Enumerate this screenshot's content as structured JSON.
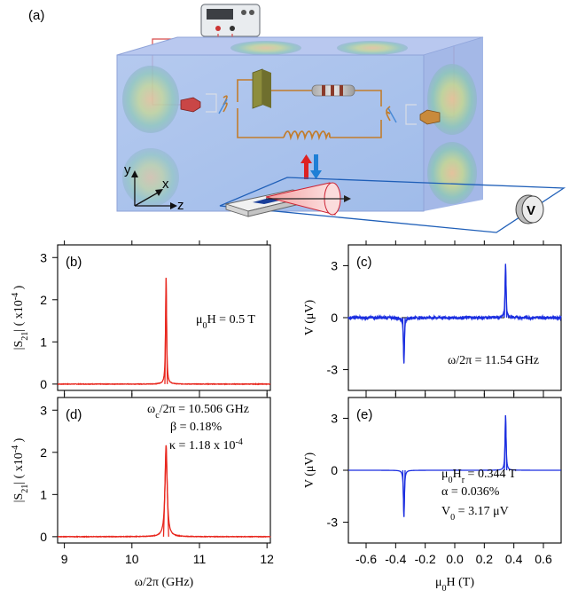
{
  "figure": {
    "panel_a": {
      "label": "(a)",
      "axis_labels": {
        "y": "y",
        "x": "x",
        "z": "z"
      }
    }
  },
  "chart_data": [
    {
      "id": "b",
      "panel_label": "(b)",
      "type": "line",
      "ylabel": "|S21| ( x10-4 )",
      "xlabel": "",
      "xlim": [
        8.9,
        12.05
      ],
      "ylim": [
        -0.15,
        3.3
      ],
      "xticks": [
        9,
        10,
        11,
        12
      ],
      "yticks": [
        0,
        1,
        2,
        3
      ],
      "xtick_labels_shown": false,
      "ytick_labels_shown": true,
      "annotation": "μ0H = 0.5 T",
      "series": [
        {
          "color": "#e8271e",
          "model": "lorentzian",
          "center": 10.506,
          "peak": 2.52,
          "hwhm": 0.009,
          "baseline": 0.0
        }
      ]
    },
    {
      "id": "c",
      "panel_label": "(c)",
      "type": "line",
      "ylabel": "V (μV)",
      "xlabel": "",
      "xlim": [
        -0.72,
        0.72
      ],
      "ylim": [
        -4.2,
        4.2
      ],
      "xticks": [
        -0.6,
        -0.4,
        -0.2,
        0.0,
        0.2,
        0.4,
        0.6
      ],
      "yticks": [
        -3,
        0,
        3
      ],
      "xtick_labels_shown": false,
      "ytick_labels_shown": true,
      "annotation": "ω/2π = 11.54 GHz",
      "series": [
        {
          "color": "#1b2ee0",
          "model": "antisym_peaks",
          "center": 0.344,
          "peak": 3.05,
          "hwhm": 0.004,
          "baseline": 0.0,
          "noisy": true
        }
      ]
    },
    {
      "id": "d",
      "panel_label": "(d)",
      "type": "line",
      "ylabel": "|S21| ( x10-4 )",
      "xlabel": "ω/2π (GHz)",
      "xlim": [
        8.9,
        12.05
      ],
      "ylim": [
        -0.15,
        3.3
      ],
      "xticks": [
        9,
        10,
        11,
        12
      ],
      "yticks": [
        0,
        1,
        2,
        3
      ],
      "xtick_labels_shown": true,
      "ytick_labels_shown": true,
      "annotations": [
        "ωc/2π = 10.506 GHz",
        "β = 0.18%",
        "κ = 1.18 x 10-4"
      ],
      "series": [
        {
          "color": "#e8271e",
          "model": "lorentzian",
          "center": 10.506,
          "peak": 2.17,
          "hwhm": 0.019,
          "baseline": 0.0
        }
      ]
    },
    {
      "id": "e",
      "panel_label": "(e)",
      "type": "line",
      "ylabel": "V (μV)",
      "xlabel": "μ0H (T)",
      "xlim": [
        -0.72,
        0.72
      ],
      "ylim": [
        -4.2,
        4.2
      ],
      "xticks": [
        -0.6,
        -0.4,
        -0.2,
        0.0,
        0.2,
        0.4,
        0.6
      ],
      "xtick_labels": [
        "-0.6",
        "-0.4",
        "-0.2",
        "0.0",
        "0.2",
        "0.4",
        "0.6"
      ],
      "yticks": [
        -3,
        0,
        3
      ],
      "xtick_labels_shown": true,
      "ytick_labels_shown": true,
      "annotations": [
        "μ0Hr = 0.344 T",
        "α = 0.036%",
        "V0 = 3.17 μV"
      ],
      "series": [
        {
          "color": "#1b2ee0",
          "model": "antisym_peaks",
          "center": 0.344,
          "peak": 3.17,
          "hwhm": 0.004,
          "baseline": 0.0
        }
      ]
    }
  ]
}
